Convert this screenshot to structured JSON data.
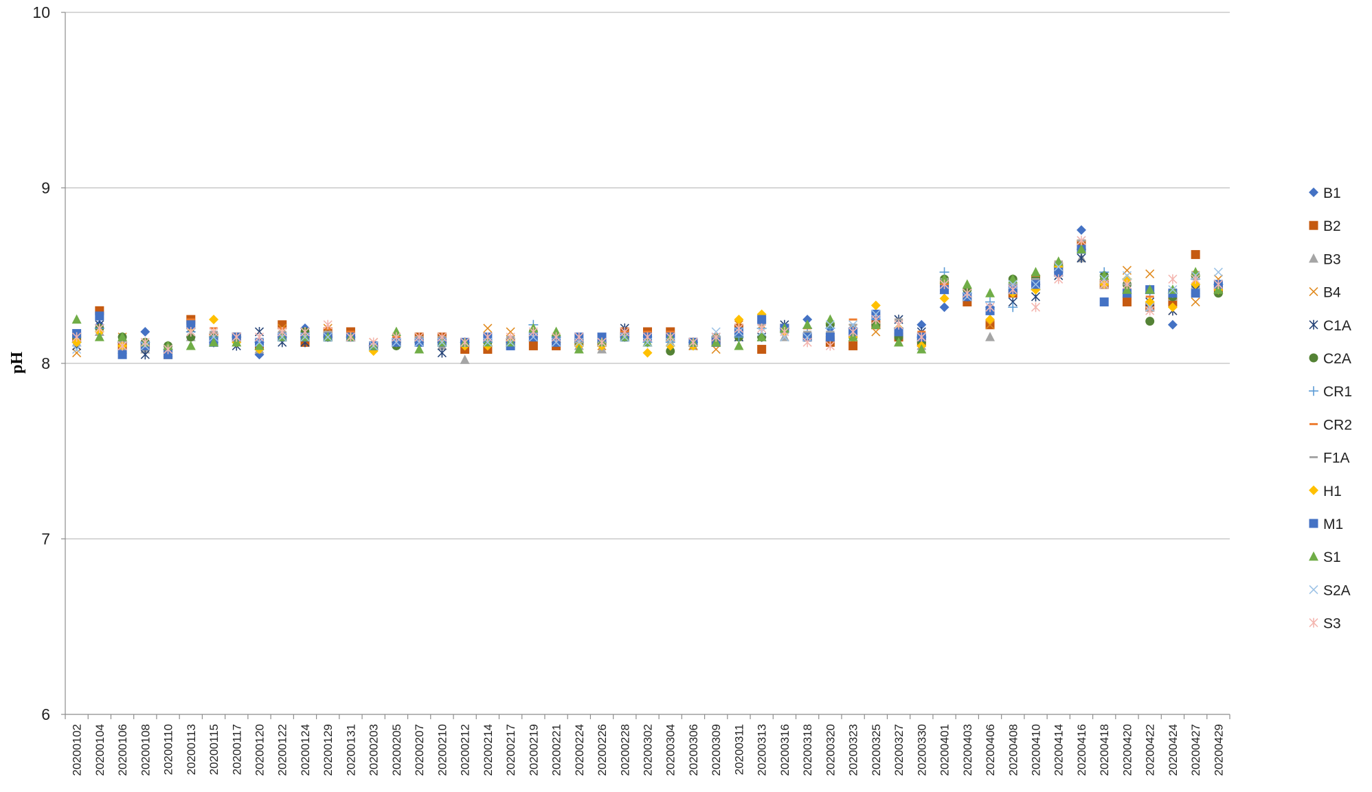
{
  "chart_data": {
    "type": "scatter",
    "title": "",
    "xlabel": "",
    "ylabel": "pH",
    "ylim": [
      6,
      10
    ],
    "yticks": [
      6,
      7,
      8,
      9,
      10
    ],
    "grid": true,
    "legend_position": "right",
    "categories": [
      "20200102",
      "20200104",
      "20200106",
      "20200108",
      "20200110",
      "20200113",
      "20200115",
      "20200117",
      "20200120",
      "20200122",
      "20200124",
      "20200129",
      "20200131",
      "20200203",
      "20200205",
      "20200207",
      "20200210",
      "20200212",
      "20200214",
      "20200217",
      "20200219",
      "20200221",
      "20200224",
      "20200226",
      "20200228",
      "20200302",
      "20200304",
      "20200306",
      "20200309",
      "20200311",
      "20200313",
      "20200316",
      "20200318",
      "20200320",
      "20200323",
      "20200325",
      "20200327",
      "20200330",
      "20200401",
      "20200403",
      "20200406",
      "20200408",
      "20200410",
      "20200414",
      "20200416",
      "20200418",
      "20200420",
      "20200422",
      "20200424",
      "20200427",
      "20200429"
    ],
    "series": [
      {
        "name": "B1",
        "color": "#4472C4",
        "marker": "diamond",
        "values": [
          8.12,
          8.22,
          8.12,
          8.18,
          8.08,
          8.15,
          8.12,
          8.12,
          8.05,
          8.15,
          8.2,
          8.15,
          8.15,
          8.1,
          8.12,
          8.12,
          8.12,
          8.12,
          8.12,
          8.12,
          8.15,
          8.12,
          8.12,
          8.12,
          8.15,
          8.15,
          8.15,
          8.12,
          8.15,
          8.15,
          8.15,
          8.2,
          8.25,
          8.2,
          8.2,
          8.25,
          8.2,
          8.22,
          8.32,
          8.38,
          8.32,
          8.45,
          8.45,
          8.52,
          8.76,
          8.45,
          8.4,
          8.35,
          8.22,
          8.45,
          8.45
        ]
      },
      {
        "name": "B2",
        "color": "#C55A11",
        "marker": "square",
        "values": [
          8.15,
          8.3,
          8.1,
          8.1,
          8.05,
          8.25,
          8.15,
          8.15,
          8.1,
          8.22,
          8.12,
          8.18,
          8.18,
          8.1,
          8.12,
          8.15,
          8.15,
          8.08,
          8.08,
          8.12,
          8.1,
          8.1,
          8.12,
          8.12,
          8.18,
          8.18,
          8.18,
          8.12,
          8.12,
          8.2,
          8.08,
          8.2,
          8.15,
          8.12,
          8.1,
          8.22,
          8.15,
          8.12,
          8.45,
          8.35,
          8.22,
          8.4,
          8.48,
          8.55,
          8.68,
          8.45,
          8.35,
          8.32,
          8.35,
          8.62,
          8.42
        ]
      },
      {
        "name": "B3",
        "color": "#A5A5A5",
        "marker": "triangle",
        "values": [
          8.12,
          8.18,
          8.08,
          8.08,
          8.06,
          8.15,
          8.12,
          8.12,
          8.08,
          8.15,
          8.15,
          8.15,
          8.15,
          8.1,
          8.12,
          8.12,
          8.1,
          8.02,
          8.12,
          8.12,
          8.15,
          8.12,
          8.1,
          8.08,
          8.15,
          8.12,
          8.12,
          8.1,
          8.12,
          8.15,
          8.15,
          8.15,
          8.15,
          8.15,
          8.15,
          8.22,
          8.12,
          8.1,
          8.42,
          8.38,
          8.15,
          8.42,
          8.45,
          8.52,
          8.6,
          8.45,
          8.4,
          8.32,
          8.38,
          8.45,
          8.42
        ]
      },
      {
        "name": "B4",
        "color": "#E08A1E",
        "marker": "x",
        "values": [
          8.06,
          8.2,
          8.15,
          8.1,
          8.06,
          8.2,
          8.15,
          8.15,
          8.1,
          8.2,
          8.15,
          8.2,
          8.15,
          8.12,
          8.12,
          8.15,
          8.15,
          8.12,
          8.2,
          8.18,
          8.15,
          8.12,
          8.12,
          8.1,
          8.15,
          8.15,
          8.12,
          8.1,
          8.08,
          8.22,
          8.22,
          8.2,
          8.15,
          8.15,
          8.2,
          8.18,
          8.22,
          8.12,
          8.45,
          8.4,
          8.22,
          8.45,
          8.45,
          8.55,
          8.68,
          8.45,
          8.53,
          8.51,
          8.3,
          8.35,
          8.48
        ]
      },
      {
        "name": "C1A",
        "color": "#264478",
        "marker": "star",
        "values": [
          8.1,
          8.22,
          8.1,
          8.05,
          8.06,
          8.2,
          8.12,
          8.1,
          8.18,
          8.12,
          8.12,
          8.15,
          8.15,
          8.1,
          8.12,
          8.12,
          8.06,
          8.12,
          8.12,
          8.12,
          8.15,
          8.12,
          8.12,
          8.12,
          8.2,
          8.12,
          8.12,
          8.12,
          8.15,
          8.15,
          8.15,
          8.22,
          8.15,
          8.15,
          8.18,
          8.25,
          8.25,
          8.18,
          8.42,
          8.38,
          8.3,
          8.35,
          8.38,
          8.5,
          8.6,
          8.45,
          8.42,
          8.35,
          8.3,
          8.42,
          8.45
        ]
      },
      {
        "name": "C2A",
        "color": "#548235",
        "marker": "circle",
        "values": [
          8.15,
          8.2,
          8.15,
          8.12,
          8.1,
          8.15,
          8.15,
          8.15,
          8.12,
          8.15,
          8.18,
          8.15,
          8.15,
          8.1,
          8.1,
          8.12,
          8.12,
          8.12,
          8.12,
          8.12,
          8.18,
          8.15,
          8.12,
          8.12,
          8.15,
          8.15,
          8.07,
          8.12,
          8.15,
          8.15,
          8.15,
          8.18,
          8.15,
          8.22,
          8.15,
          8.22,
          8.15,
          8.12,
          8.48,
          8.42,
          8.3,
          8.48,
          8.48,
          8.55,
          8.65,
          8.5,
          8.45,
          8.24,
          8.38,
          8.5,
          8.4
        ]
      },
      {
        "name": "CR1",
        "color": "#5B9BD5",
        "marker": "plus",
        "values": [
          8.12,
          8.2,
          8.12,
          8.12,
          8.08,
          8.18,
          8.15,
          8.15,
          8.12,
          8.15,
          8.15,
          8.15,
          8.15,
          8.1,
          8.12,
          8.12,
          8.12,
          8.12,
          8.12,
          8.12,
          8.22,
          8.15,
          8.12,
          8.12,
          8.15,
          8.12,
          8.12,
          8.12,
          8.15,
          8.15,
          8.2,
          8.2,
          8.2,
          8.2,
          8.2,
          8.25,
          8.2,
          8.15,
          8.52,
          8.4,
          8.35,
          8.32,
          8.42,
          8.55,
          8.65,
          8.52,
          8.48,
          8.4,
          8.4,
          8.48,
          8.45
        ]
      },
      {
        "name": "CR2",
        "color": "#ED7D31",
        "marker": "dash",
        "values": [
          8.15,
          8.28,
          8.12,
          8.12,
          8.08,
          8.25,
          8.2,
          8.15,
          8.12,
          8.2,
          8.15,
          8.2,
          8.18,
          8.1,
          8.15,
          8.15,
          8.15,
          8.12,
          8.15,
          8.15,
          8.18,
          8.12,
          8.15,
          8.12,
          8.18,
          8.18,
          8.18,
          8.12,
          8.15,
          8.2,
          8.25,
          8.2,
          8.2,
          8.18,
          8.25,
          8.3,
          8.25,
          8.18,
          8.45,
          8.38,
          8.3,
          8.45,
          8.5,
          8.58,
          8.7,
          8.48,
          8.42,
          8.38,
          8.4,
          8.52,
          8.45
        ]
      },
      {
        "name": "F1A",
        "color": "#A5A5A5",
        "marker": "dash",
        "values": [
          8.15,
          8.25,
          8.12,
          8.12,
          8.08,
          8.22,
          8.18,
          8.15,
          8.12,
          8.18,
          8.15,
          8.18,
          8.15,
          8.1,
          8.12,
          8.15,
          8.15,
          8.12,
          8.15,
          8.15,
          8.18,
          8.12,
          8.12,
          8.12,
          8.15,
          8.15,
          8.15,
          8.12,
          8.15,
          8.18,
          8.22,
          8.2,
          8.18,
          8.18,
          8.22,
          8.28,
          8.25,
          8.15,
          8.48,
          8.38,
          8.32,
          8.45,
          8.48,
          8.58,
          8.7,
          8.48,
          8.45,
          8.35,
          8.42,
          8.48,
          8.45
        ]
      },
      {
        "name": "H1",
        "color": "#FFC000",
        "marker": "diamond",
        "values": [
          8.12,
          8.18,
          8.1,
          8.1,
          8.06,
          8.2,
          8.25,
          8.12,
          8.08,
          8.15,
          8.15,
          8.15,
          8.15,
          8.07,
          8.12,
          8.12,
          8.12,
          8.1,
          8.1,
          8.12,
          8.15,
          8.12,
          8.1,
          8.1,
          8.15,
          8.06,
          8.1,
          8.1,
          8.12,
          8.25,
          8.28,
          8.18,
          8.15,
          8.15,
          8.15,
          8.33,
          8.2,
          8.1,
          8.37,
          8.38,
          8.25,
          8.4,
          8.42,
          8.55,
          8.65,
          8.45,
          8.48,
          8.35,
          8.32,
          8.45,
          8.42
        ]
      },
      {
        "name": "M1",
        "color": "#4472C4",
        "marker": "square",
        "values": [
          8.17,
          8.27,
          8.05,
          8.1,
          8.05,
          8.22,
          8.12,
          8.15,
          8.12,
          8.15,
          8.15,
          8.15,
          8.15,
          8.1,
          8.12,
          8.12,
          8.12,
          8.12,
          8.15,
          8.1,
          8.15,
          8.12,
          8.15,
          8.15,
          8.15,
          8.15,
          8.15,
          8.12,
          8.12,
          8.18,
          8.25,
          8.2,
          8.15,
          8.15,
          8.18,
          8.28,
          8.18,
          8.15,
          8.42,
          8.38,
          8.3,
          8.42,
          8.45,
          8.52,
          8.65,
          8.35,
          8.4,
          8.42,
          8.4,
          8.4,
          8.45
        ]
      },
      {
        "name": "S1",
        "color": "#70AD47",
        "marker": "triangle",
        "values": [
          8.25,
          8.15,
          8.15,
          8.12,
          8.1,
          8.1,
          8.12,
          8.12,
          8.1,
          8.15,
          8.15,
          8.15,
          8.15,
          8.1,
          8.18,
          8.08,
          8.12,
          8.12,
          8.12,
          8.12,
          8.2,
          8.18,
          8.08,
          8.12,
          8.15,
          8.12,
          8.15,
          8.12,
          8.12,
          8.1,
          8.15,
          8.2,
          8.22,
          8.25,
          8.15,
          8.22,
          8.12,
          8.08,
          8.48,
          8.45,
          8.4,
          8.48,
          8.52,
          8.58,
          8.65,
          8.5,
          8.42,
          8.42,
          8.42,
          8.52,
          8.42
        ]
      },
      {
        "name": "S2A",
        "color": "#9DC3E6",
        "marker": "x",
        "values": [
          8.08,
          8.2,
          8.1,
          8.1,
          8.08,
          8.18,
          8.15,
          8.15,
          8.12,
          8.15,
          8.15,
          8.15,
          8.15,
          8.1,
          8.12,
          8.12,
          8.12,
          8.12,
          8.12,
          8.12,
          8.15,
          8.12,
          8.12,
          8.12,
          8.15,
          8.12,
          8.12,
          8.12,
          8.18,
          8.18,
          8.18,
          8.15,
          8.15,
          8.22,
          8.22,
          8.28,
          8.22,
          8.15,
          8.45,
          8.38,
          8.32,
          8.45,
          8.45,
          8.55,
          8.7,
          8.48,
          8.5,
          8.32,
          8.42,
          8.5,
          8.52
        ]
      },
      {
        "name": "S3",
        "color": "#F4B6B0",
        "marker": "star",
        "values": [
          8.15,
          8.2,
          8.1,
          8.12,
          8.08,
          8.18,
          8.18,
          8.15,
          8.15,
          8.18,
          8.18,
          8.22,
          8.15,
          8.12,
          8.15,
          8.15,
          8.15,
          8.12,
          8.15,
          8.15,
          8.18,
          8.15,
          8.15,
          8.12,
          8.18,
          8.15,
          8.15,
          8.12,
          8.15,
          8.2,
          8.2,
          8.18,
          8.12,
          8.1,
          8.18,
          8.25,
          8.22,
          8.15,
          8.45,
          8.4,
          8.32,
          8.42,
          8.32,
          8.48,
          8.7,
          8.45,
          8.45,
          8.3,
          8.48,
          8.48,
          8.45
        ]
      }
    ]
  }
}
